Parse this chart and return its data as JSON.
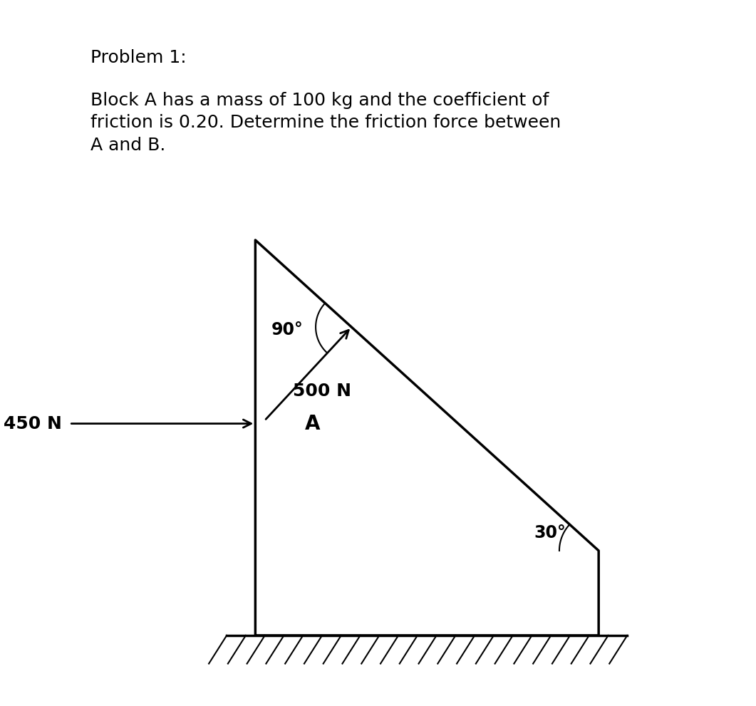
{
  "title_line1": "Problem 1:",
  "body_text": "Block A has a mass of 100 kg and the coefficient of\nfriction is 0.20. Determine the friction force between\nA and B.",
  "force_500": "500 N",
  "force_450": "450 N",
  "angle_90": "90°",
  "angle_30": "30°",
  "label_A": "A",
  "bg_color": "#ffffff",
  "text_color": "#000000",
  "line_color": "#000000",
  "hatch_color": "#000000",
  "title_fontsize": 18,
  "body_fontsize": 18,
  "diagram_fontsize": 18
}
